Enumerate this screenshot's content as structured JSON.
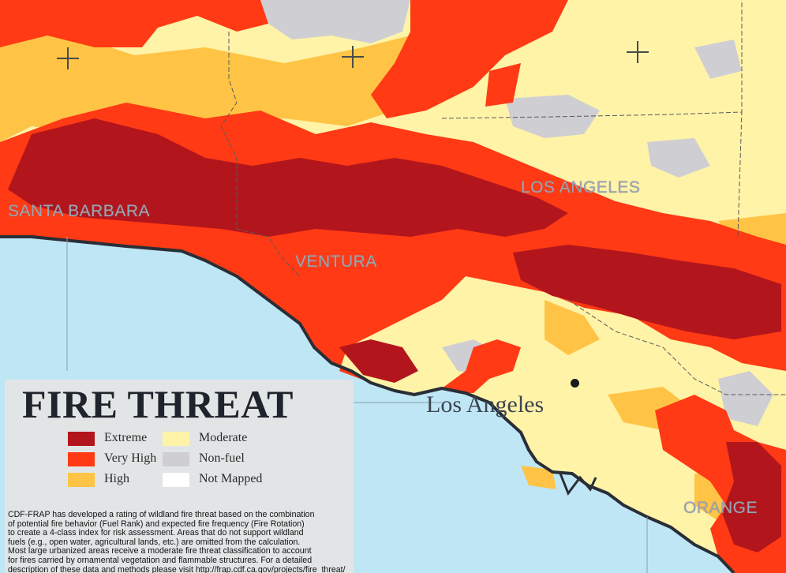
{
  "map": {
    "county_labels": [
      "SANTA BARBARA",
      "VENTURA",
      "LOS ANGELES",
      "ORANGE"
    ],
    "city_label": "Los Angeles",
    "colors": {
      "ocean": "#bfe6f5",
      "extreme": "#b3151c",
      "very_high": "#ff3a14",
      "high": "#ffc445",
      "moderate": "#fff3a8",
      "non_fuel": "#cfcfd3",
      "not_mapped": "#ffffff",
      "coast": "#2a2e36"
    }
  },
  "legend": {
    "title": "FIRE THREAT",
    "items": [
      {
        "label": "Extreme",
        "color": "#b3151c"
      },
      {
        "label": "Very High",
        "color": "#ff3a14"
      },
      {
        "label": "High",
        "color": "#ffc445"
      },
      {
        "label": "Moderate",
        "color": "#fff3a8"
      },
      {
        "label": "Non-fuel",
        "color": "#cfcfd3"
      },
      {
        "label": "Not Mapped",
        "color": "#ffffff"
      }
    ],
    "description_lines": [
      "CDF-FRAP has developed a rating of wildland fire threat based on the combination",
      "of potential fire behavior (Fuel Rank) and expected fire frequency (Fire Rotation)",
      "to create a 4-class index for risk assessment. Areas that do not support wildland",
      "fuels (e.g., open water, agricultural lands, etc.) are omitted from the calculation.",
      "Most large urbanized areas receive a moderate fire threat classification to account",
      "for fires carried by ornamental vegetation and flammable structures. For a detailed",
      "description of these data and methods please visit http://frap.cdf.ca.gov/projects/fire_threat/"
    ]
  }
}
